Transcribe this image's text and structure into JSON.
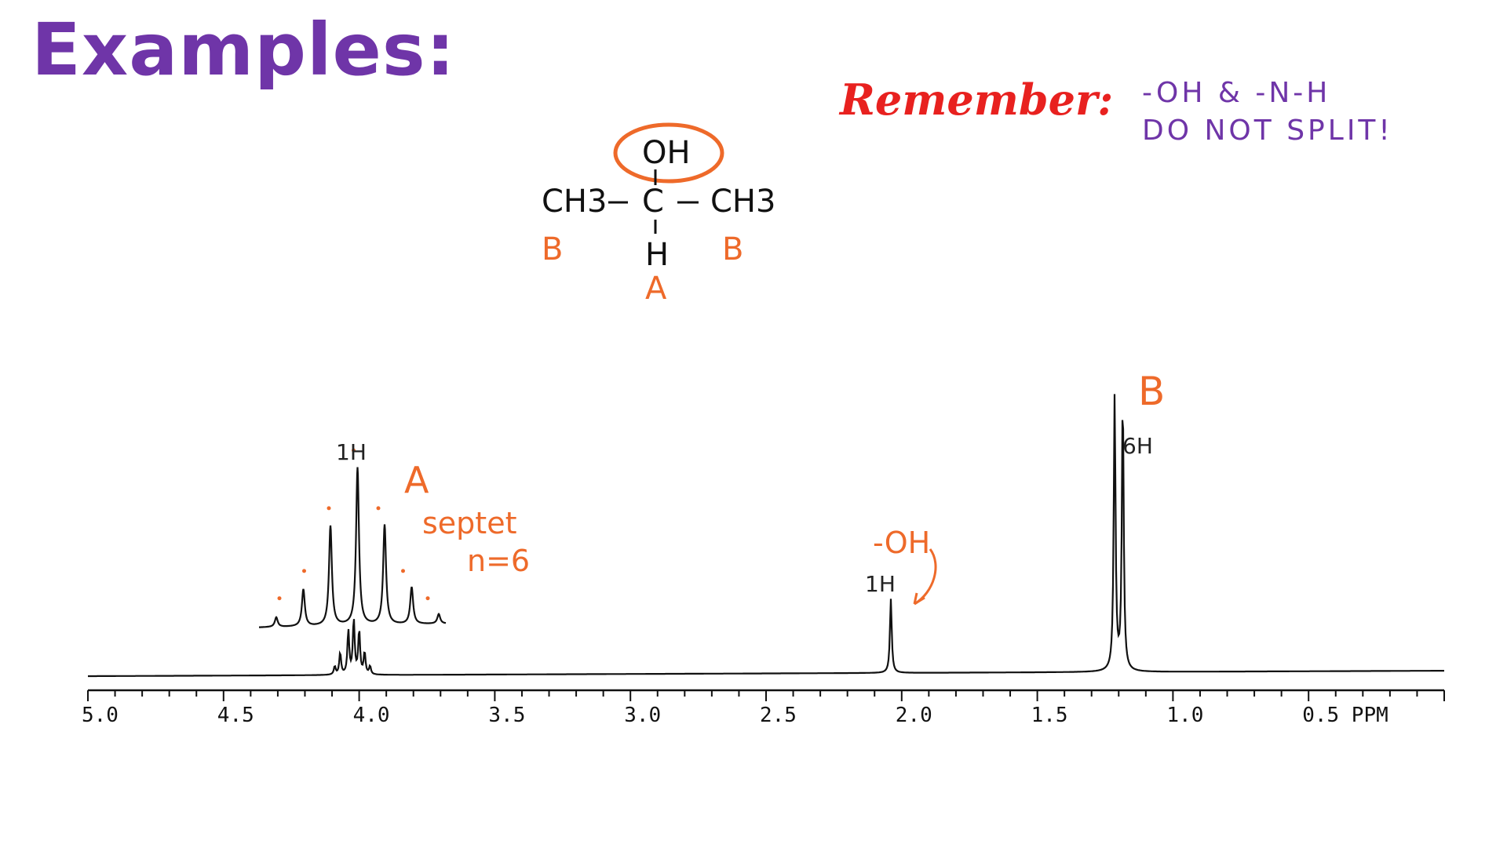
{
  "title": "Examples:",
  "remember": {
    "label": "Remember:",
    "line1": "-OH & -N-H",
    "line2": "DO NOT SPLIT!"
  },
  "molecule": {
    "oh": "OH",
    "ch3_left": "CH3",
    "c": "C",
    "ch3_right": "CH3",
    "h": "H",
    "label_b_left": "B",
    "label_b_right": "B",
    "label_a": "A"
  },
  "colors": {
    "title": "#6f35a8",
    "remember": "#e8211f",
    "annotation": "#ee6a2a",
    "spectrum": "#111111"
  },
  "chart_data": {
    "type": "line",
    "title": "",
    "xlabel": "PPM",
    "ylabel": "",
    "xlim": [
      5.0,
      0.0
    ],
    "x_reversed": true,
    "x_ticks": [
      "5.0",
      "4.5",
      "4.0",
      "3.5",
      "3.0",
      "2.5",
      "2.0",
      "1.5",
      "1.0",
      "0.5 PPM"
    ],
    "x_tick_values": [
      5.0,
      4.5,
      4.0,
      3.5,
      3.0,
      2.5,
      2.0,
      1.5,
      1.0,
      0.5
    ],
    "peaks": [
      {
        "label": "A",
        "integration": "1H",
        "center": 4.02,
        "multiplicity": "septet",
        "n_note": "n=6",
        "lines": [
          {
            "shift": 4.09,
            "height": 0.03
          },
          {
            "shift": 4.07,
            "height": 0.08
          },
          {
            "shift": 4.04,
            "height": 0.16
          },
          {
            "shift": 4.02,
            "height": 0.2
          },
          {
            "shift": 4.0,
            "height": 0.16
          },
          {
            "shift": 3.98,
            "height": 0.08
          },
          {
            "shift": 3.96,
            "height": 0.03
          }
        ]
      },
      {
        "label": "-OH",
        "integration": "1H",
        "center": 2.04,
        "multiplicity": "singlet",
        "lines": [
          {
            "shift": 2.04,
            "height": 0.27
          }
        ]
      },
      {
        "label": "B",
        "integration": "6H",
        "center": 1.2,
        "multiplicity": "doublet",
        "lines": [
          {
            "shift": 1.215,
            "height": 1.0
          },
          {
            "shift": 1.185,
            "height": 1.0
          }
        ]
      }
    ],
    "inset": {
      "description_label": "septet",
      "peak_heights": [
        0.06,
        0.23,
        0.62,
        0.98,
        0.62,
        0.23,
        0.06
      ]
    }
  },
  "annotations": {
    "a_label": "A",
    "septet": "septet",
    "n_eq": "n=6",
    "oh_label": "-OH",
    "b_label": "B",
    "int_a": "1H",
    "int_oh": "1H",
    "int_b": "6H"
  }
}
